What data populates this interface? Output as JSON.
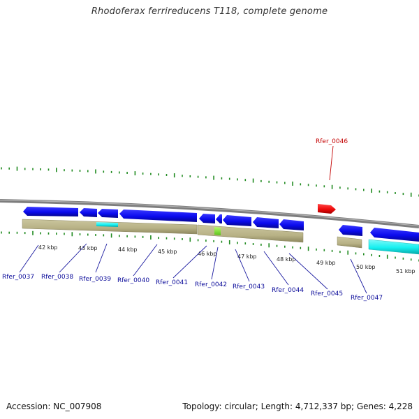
{
  "title": "Rhodoferax ferrireducens T118, complete genome",
  "footer": {
    "accession": "Accession: NC_007908",
    "topology": "Topology: circular; Length: 4,712,337 bp; Genes: 4,228"
  },
  "colors": {
    "backbone": "#8c8c8c",
    "tick": "#1f8a1f",
    "gene_forward": "#ff1414",
    "gene_reverse": "#0a0aee",
    "gene_reverse_cyan": "#16f0f0",
    "feature_band": "#b8b286",
    "feature_small": "#7ee02a",
    "gene_label": "#0b0b9a",
    "gene_label_highlight": "#c40000"
  },
  "scale": {
    "tick_labels": [
      "42 kbp",
      "43 kbp",
      "44 kbp",
      "45 kbp",
      "46 kbp",
      "47 kbp",
      "48 kbp",
      "49 kbp",
      "50 kbp",
      "51 kbp"
    ]
  },
  "genes": [
    {
      "id": "Rfer_0037",
      "strand": "reverse"
    },
    {
      "id": "Rfer_0038",
      "strand": "reverse"
    },
    {
      "id": "Rfer_0039",
      "strand": "reverse"
    },
    {
      "id": "Rfer_0040",
      "strand": "reverse"
    },
    {
      "id": "Rfer_0041",
      "strand": "reverse"
    },
    {
      "id": "Rfer_0042",
      "strand": "reverse"
    },
    {
      "id": "Rfer_0043",
      "strand": "reverse"
    },
    {
      "id": "Rfer_0044",
      "strand": "reverse"
    },
    {
      "id": "Rfer_0045",
      "strand": "reverse"
    },
    {
      "id": "Rfer_0046",
      "strand": "forward",
      "highlight": true
    },
    {
      "id": "Rfer_0047",
      "strand": "reverse"
    }
  ]
}
